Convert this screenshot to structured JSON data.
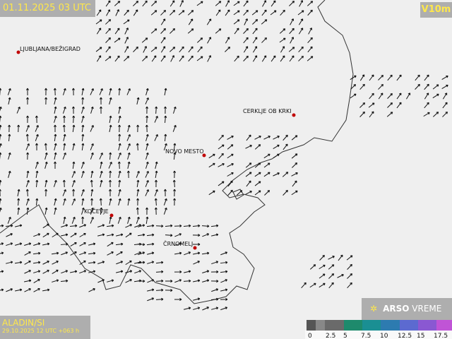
{
  "header": {
    "time": "01.11.2025 03 UTC",
    "field": "V10m"
  },
  "cities": [
    {
      "label": "LJUBLJANA/BEŽIGRAD"
    },
    {
      "label": "CERKLJE OB KRKI"
    },
    {
      "label": "NOVO MESTO"
    },
    {
      "label": "KOČEVJE"
    },
    {
      "label": "ČRNOMELJ"
    }
  ],
  "footer": {
    "model": "ALADIN/SI",
    "run": "29.10.2025 12 UTC +063 h"
  },
  "logo": {
    "bold": "ARSO",
    "text": "VREME"
  },
  "legend": {
    "labels": [
      0,
      2.5,
      5,
      7.5,
      10,
      12.5,
      15,
      17.5
    ]
  }
}
